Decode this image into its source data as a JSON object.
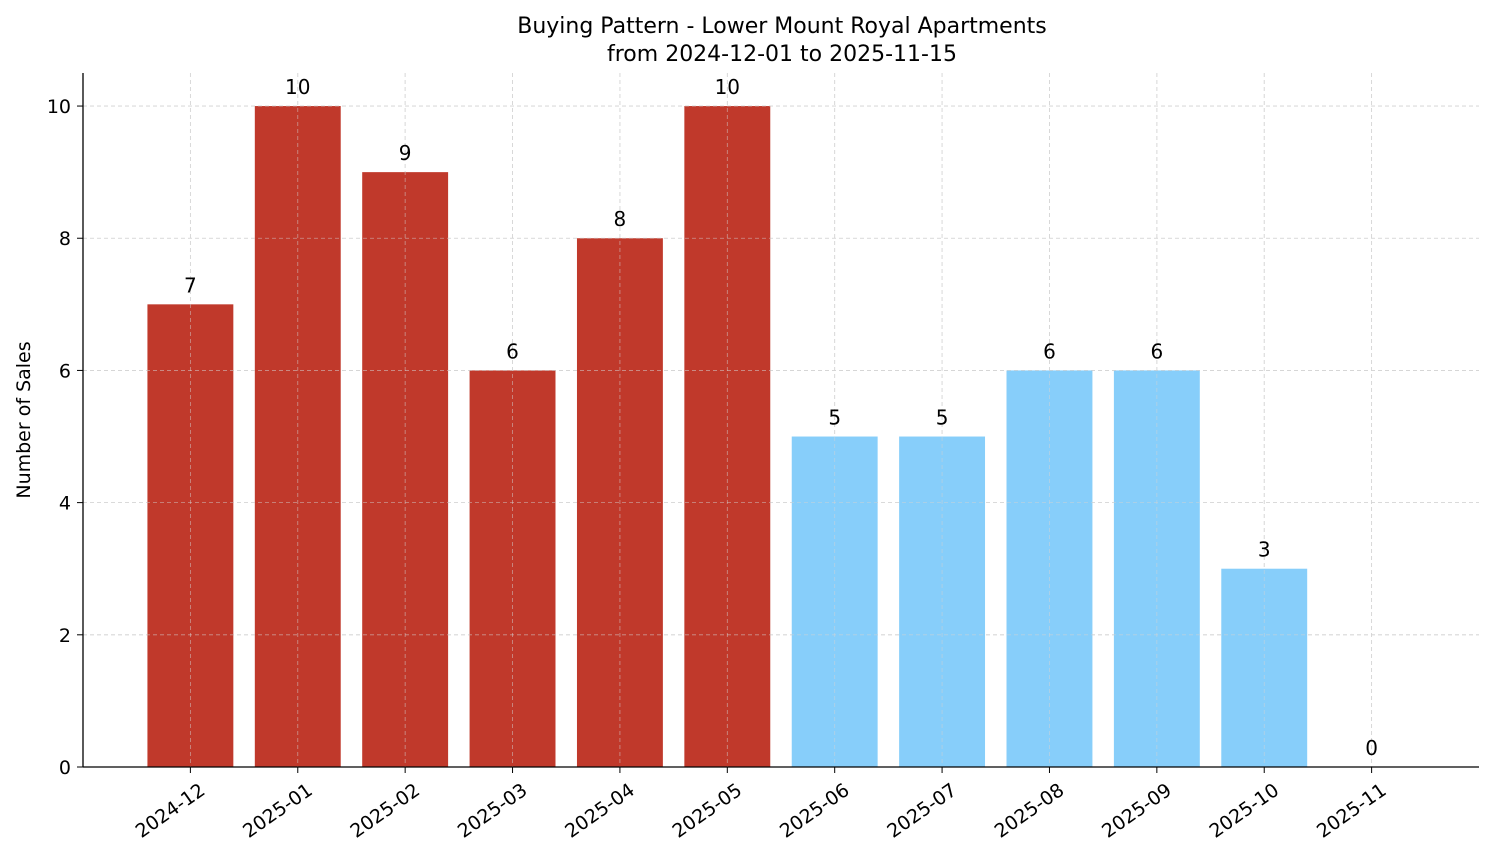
{
  "chart_data": {
    "type": "bar",
    "title": "Buying Pattern - Lower Mount Royal Apartments",
    "subtitle": "from 2024-12-01 to 2025-11-15",
    "xlabel": "",
    "ylabel": "Number of Sales",
    "categories": [
      "2024-12",
      "2025-01",
      "2025-02",
      "2025-03",
      "2025-04",
      "2025-05",
      "2025-06",
      "2025-07",
      "2025-08",
      "2025-09",
      "2025-10",
      "2025-11"
    ],
    "values": [
      7,
      10,
      9,
      6,
      8,
      10,
      5,
      5,
      6,
      6,
      3,
      0
    ],
    "bar_colors": [
      "#c0392b",
      "#c0392b",
      "#c0392b",
      "#c0392b",
      "#c0392b",
      "#c0392b",
      "#87cefa",
      "#87cefa",
      "#87cefa",
      "#87cefa",
      "#87cefa",
      "#87cefa"
    ],
    "ylim": [
      0,
      10.5
    ],
    "yticks": [
      0,
      2,
      4,
      6,
      8,
      10
    ],
    "grid": true,
    "data_labels": true
  }
}
